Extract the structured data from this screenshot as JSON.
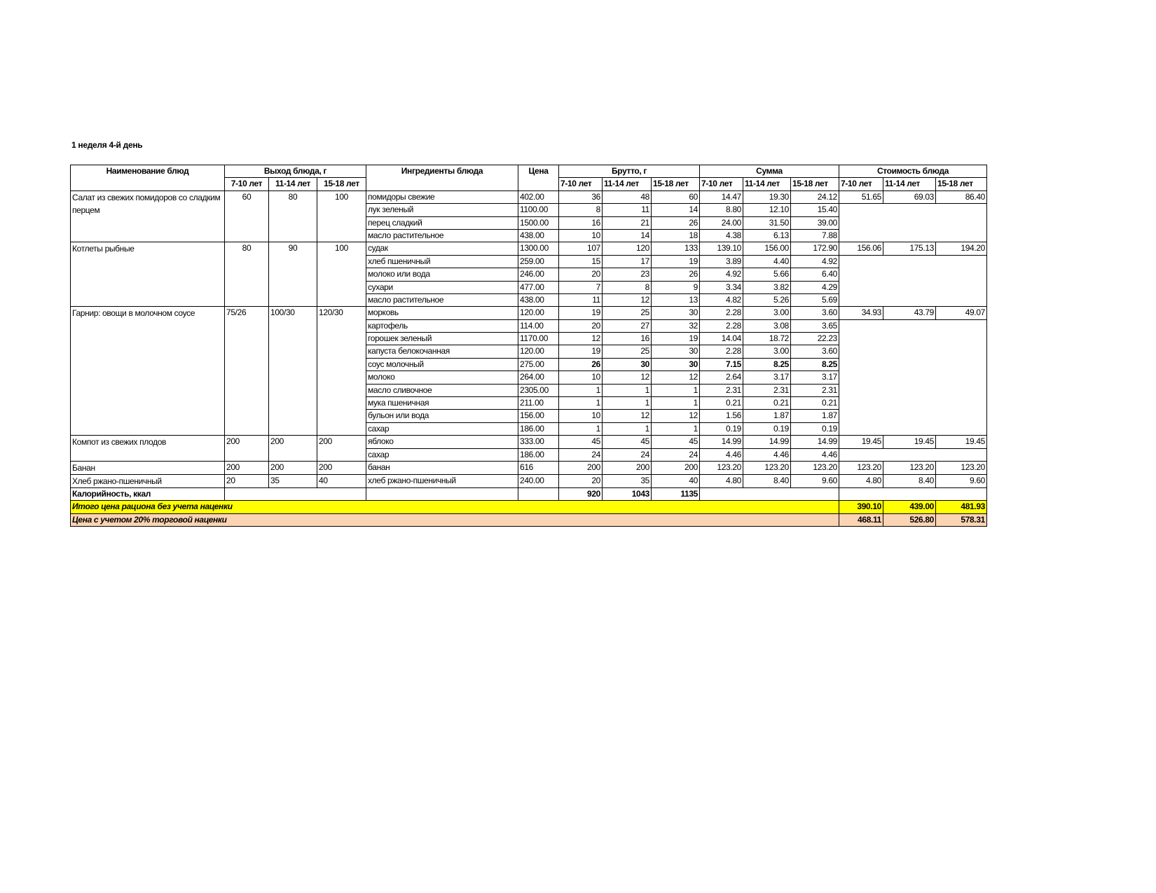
{
  "title": "1 неделя 4-й день",
  "headers": {
    "dish": "Наименование блюд",
    "yield": "Выход блюда, г",
    "ingredients": "Ингредиенты блюда",
    "price": "Цена",
    "gross": "Брутто, г",
    "sum": "Сумма",
    "cost": "Стоимость блюда",
    "ages": [
      "7-10 лет",
      "11-14 лет",
      "15-18 лет"
    ]
  },
  "dishes": [
    {
      "name": "Салат из свежих помидоров со сладким перцем",
      "yield": [
        "60",
        "80",
        "100"
      ],
      "yield_align": "center",
      "cost": [
        "51.65",
        "69.03",
        "86.40"
      ],
      "ingredients": [
        {
          "name": "помидоры свежие",
          "price": "402.00",
          "gross": [
            "36",
            "48",
            "60"
          ],
          "sum": [
            "14.47",
            "19.30",
            "24.12"
          ]
        },
        {
          "name": "лук зеленый",
          "price": "1100.00",
          "gross": [
            "8",
            "11",
            "14"
          ],
          "sum": [
            "8.80",
            "12.10",
            "15.40"
          ]
        },
        {
          "name": "перец сладкий",
          "price": "1500.00",
          "gross": [
            "16",
            "21",
            "26"
          ],
          "sum": [
            "24.00",
            "31.50",
            "39.00"
          ]
        },
        {
          "name": "масло растительное",
          "price": "438.00",
          "gross": [
            "10",
            "14",
            "18"
          ],
          "sum": [
            "4.38",
            "6.13",
            "7.88"
          ]
        }
      ]
    },
    {
      "name": "Котлеты рыбные",
      "yield": [
        "80",
        "90",
        "100"
      ],
      "yield_align": "center",
      "cost": [
        "156.06",
        "175.13",
        "194.20"
      ],
      "ingredients": [
        {
          "name": "судак",
          "price": "1300.00",
          "gross": [
            "107",
            "120",
            "133"
          ],
          "sum": [
            "139.10",
            "156.00",
            "172.90"
          ]
        },
        {
          "name": "хлеб пшеничный",
          "price": "259.00",
          "gross": [
            "15",
            "17",
            "19"
          ],
          "sum": [
            "3.89",
            "4.40",
            "4.92"
          ]
        },
        {
          "name": "молоко или вода",
          "price": "246.00",
          "gross": [
            "20",
            "23",
            "26"
          ],
          "sum": [
            "4.92",
            "5.66",
            "6.40"
          ]
        },
        {
          "name": "сухари",
          "price": "477.00",
          "gross": [
            "7",
            "8",
            "9"
          ],
          "sum": [
            "3.34",
            "3.82",
            "4.29"
          ]
        },
        {
          "name": "масло растительное",
          "price": "438.00",
          "gross": [
            "11",
            "12",
            "13"
          ],
          "sum": [
            "4.82",
            "5.26",
            "5.69"
          ]
        }
      ]
    },
    {
      "name": "Гарнир: овощи в молочном соусе",
      "yield": [
        "75/26",
        "100/30",
        "120/30"
      ],
      "yield_align": "left",
      "cost": [
        "34.93",
        "43.79",
        "49.07"
      ],
      "ingredients": [
        {
          "name": "морковь",
          "price": "120.00",
          "gross": [
            "19",
            "25",
            "30"
          ],
          "sum": [
            "2.28",
            "3.00",
            "3.60"
          ]
        },
        {
          "name": "картофель",
          "price": "114.00",
          "gross": [
            "20",
            "27",
            "32"
          ],
          "sum": [
            "2.28",
            "3.08",
            "3.65"
          ]
        },
        {
          "name": "горошек зеленый",
          "price": "1170.00",
          "gross": [
            "12",
            "16",
            "19"
          ],
          "sum": [
            "14.04",
            "18.72",
            "22.23"
          ]
        },
        {
          "name": "капуста белокочанная",
          "price": "120.00",
          "gross": [
            "19",
            "25",
            "30"
          ],
          "sum": [
            "2.28",
            "3.00",
            "3.60"
          ]
        },
        {
          "name": "соус молочный",
          "price": "275.00",
          "gross": [
            "26",
            "30",
            "30"
          ],
          "sum": [
            "7.15",
            "8.25",
            "8.25"
          ],
          "bold": true
        },
        {
          "name": "молоко",
          "price": "264.00",
          "gross": [
            "10",
            "12",
            "12"
          ],
          "sum": [
            "2.64",
            "3.17",
            "3.17"
          ]
        },
        {
          "name": "масло сливочное",
          "price": "2305.00",
          "gross": [
            "1",
            "1",
            "1"
          ],
          "sum": [
            "2.31",
            "2.31",
            "2.31"
          ]
        },
        {
          "name": "мука пшеничная",
          "price": "211.00",
          "gross": [
            "1",
            "1",
            "1"
          ],
          "sum": [
            "0.21",
            "0.21",
            "0.21"
          ]
        },
        {
          "name": "бульон или вода",
          "price": "156.00",
          "gross": [
            "10",
            "12",
            "12"
          ],
          "sum": [
            "1.56",
            "1.87",
            "1.87"
          ]
        },
        {
          "name": "сахар",
          "price": "186.00",
          "gross": [
            "1",
            "1",
            "1"
          ],
          "sum": [
            "0.19",
            "0.19",
            "0.19"
          ]
        }
      ]
    },
    {
      "name": "Компот из свежих плодов",
      "yield": [
        "200",
        "200",
        "200"
      ],
      "yield_align": "left",
      "cost": [
        "19.45",
        "19.45",
        "19.45"
      ],
      "ingredients": [
        {
          "name": "яблоко",
          "price": "333.00",
          "gross": [
            "45",
            "45",
            "45"
          ],
          "sum": [
            "14.99",
            "14.99",
            "14.99"
          ]
        },
        {
          "name": "сахар",
          "price": "186.00",
          "gross": [
            "24",
            "24",
            "24"
          ],
          "sum": [
            "4.46",
            "4.46",
            "4.46"
          ]
        }
      ]
    },
    {
      "name": "Банан",
      "yield": [
        "200",
        "200",
        "200"
      ],
      "yield_align": "left",
      "cost": [
        "123.20",
        "123.20",
        "123.20"
      ],
      "ingredients": [
        {
          "name": "банан",
          "price": "616",
          "gross": [
            "200",
            "200",
            "200"
          ],
          "sum": [
            "123.20",
            "123.20",
            "123.20"
          ]
        }
      ]
    },
    {
      "name": "Хлеб ржано-пшеничный",
      "yield": [
        "20",
        "35",
        "40"
      ],
      "yield_align": "left",
      "cost": [
        "4.80",
        "8.40",
        "9.60"
      ],
      "ingredients": [
        {
          "name": "хлеб ржано-пшеничный",
          "price": "240.00",
          "gross": [
            "20",
            "35",
            "40"
          ],
          "sum": [
            "4.80",
            "8.40",
            "9.60"
          ]
        }
      ]
    }
  ],
  "calories": {
    "label": "Калорийность, ккал",
    "values": [
      "920",
      "1043",
      "1135"
    ]
  },
  "total": {
    "label": "Итого цена рациона без учета наценки",
    "values": [
      "390.10",
      "439.00",
      "481.93"
    ],
    "color": "#ffff00"
  },
  "markup": {
    "label": "Цена с учетом 20% торговой наценки",
    "values": [
      "468.11",
      "526.80",
      "578.31"
    ],
    "color": "#fbd4b4"
  }
}
